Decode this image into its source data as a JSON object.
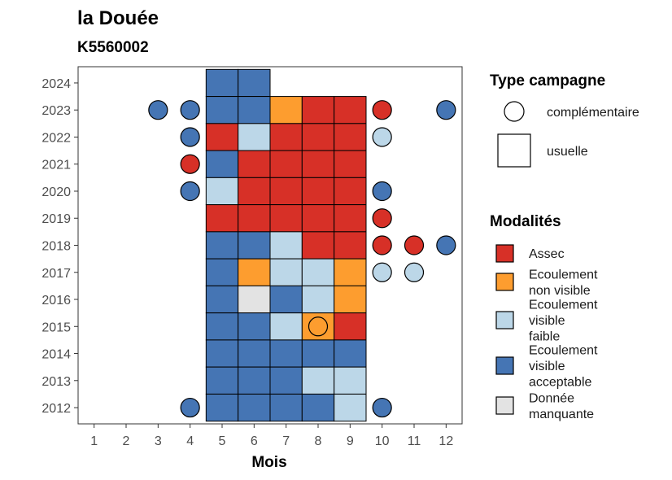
{
  "chart_data": {
    "type": "heatmap",
    "title": "la Douée",
    "subtitle": "K5560002",
    "xlabel": "Mois",
    "ylabel": "",
    "x_ticks": [
      1,
      2,
      3,
      4,
      5,
      6,
      7,
      8,
      9,
      10,
      11,
      12
    ],
    "y_ticks": [
      2012,
      2013,
      2014,
      2015,
      2016,
      2017,
      2018,
      2019,
      2020,
      2021,
      2022,
      2023,
      2024
    ],
    "xlim": [
      0.5,
      12.5
    ],
    "ylim": [
      2011.4,
      2024.6
    ],
    "colors": {
      "Assec": "#d73027",
      "Ecoulement non visible": "#fd9d2f",
      "Ecoulement visible faible": "#bcd7e8",
      "Ecoulement visible acceptable": "#4575b4",
      "Donnée manquante": "#e3e3e3"
    },
    "legend_shape": {
      "title": "Type campagne",
      "items": [
        {
          "label": "complémentaire",
          "shape": "circle"
        },
        {
          "label": "usuelle",
          "shape": "square"
        }
      ]
    },
    "legend_modalites": {
      "title": "Modalités",
      "items": [
        {
          "key": "Assec",
          "lines": [
            "Assec"
          ]
        },
        {
          "key": "Ecoulement non visible",
          "lines": [
            "Ecoulement",
            "non visible"
          ]
        },
        {
          "key": "Ecoulement visible faible",
          "lines": [
            "Ecoulement",
            "visible",
            "faible"
          ]
        },
        {
          "key": "Ecoulement visible acceptable",
          "lines": [
            "Ecoulement",
            "visible",
            "acceptable"
          ]
        },
        {
          "key": "Donnée manquante",
          "lines": [
            "Donnée",
            "manquante"
          ]
        }
      ]
    },
    "usuelle": [
      {
        "year": 2024,
        "months": [
          [
            "Ecoulement visible acceptable",
            "Ecoulement visible acceptable"
          ]
        ],
        "start": 5
      },
      {
        "year": 2023,
        "start": 5,
        "values": [
          "Ecoulement visible acceptable",
          "Ecoulement visible acceptable",
          "Ecoulement non visible",
          "Assec",
          "Assec"
        ]
      },
      {
        "year": 2022,
        "start": 5,
        "values": [
          "Assec",
          "Ecoulement visible faible",
          "Assec",
          "Assec",
          "Assec"
        ]
      },
      {
        "year": 2021,
        "start": 5,
        "values": [
          "Ecoulement visible acceptable",
          "Assec",
          "Assec",
          "Assec",
          "Assec"
        ]
      },
      {
        "year": 2020,
        "start": 5,
        "values": [
          "Ecoulement visible faible",
          "Assec",
          "Assec",
          "Assec",
          "Assec"
        ]
      },
      {
        "year": 2019,
        "start": 5,
        "values": [
          "Assec",
          "Assec",
          "Assec",
          "Assec",
          "Assec"
        ]
      },
      {
        "year": 2018,
        "start": 5,
        "values": [
          "Ecoulement visible acceptable",
          "Ecoulement visible acceptable",
          "Ecoulement visible faible",
          "Assec",
          "Assec"
        ]
      },
      {
        "year": 2017,
        "start": 5,
        "values": [
          "Ecoulement visible acceptable",
          "Ecoulement non visible",
          "Ecoulement visible faible",
          "Ecoulement visible faible",
          "Ecoulement non visible"
        ]
      },
      {
        "year": 2016,
        "start": 5,
        "values": [
          "Ecoulement visible acceptable",
          "Donnée manquante",
          "Ecoulement visible acceptable",
          "Ecoulement visible faible",
          "Ecoulement non visible"
        ]
      },
      {
        "year": 2015,
        "start": 5,
        "values": [
          "Ecoulement visible acceptable",
          "Ecoulement visible acceptable",
          "Ecoulement visible faible",
          "Ecoulement non visible",
          "Assec"
        ]
      },
      {
        "year": 2014,
        "start": 5,
        "values": [
          "Ecoulement visible acceptable",
          "Ecoulement visible acceptable",
          "Ecoulement visible acceptable",
          "Ecoulement visible acceptable",
          "Ecoulement visible acceptable"
        ]
      },
      {
        "year": 2013,
        "start": 5,
        "values": [
          "Ecoulement visible acceptable",
          "Ecoulement visible acceptable",
          "Ecoulement visible acceptable",
          "Ecoulement visible faible",
          "Ecoulement visible faible"
        ]
      },
      {
        "year": 2012,
        "start": 5,
        "values": [
          "Ecoulement visible acceptable",
          "Ecoulement visible acceptable",
          "Ecoulement visible acceptable",
          "Ecoulement visible acceptable",
          "Ecoulement visible faible"
        ]
      }
    ],
    "complementaire": [
      {
        "year": 2023,
        "month": 3,
        "value": "Ecoulement visible acceptable"
      },
      {
        "year": 2023,
        "month": 4,
        "value": "Ecoulement visible acceptable"
      },
      {
        "year": 2023,
        "month": 10,
        "value": "Assec"
      },
      {
        "year": 2023,
        "month": 12,
        "value": "Ecoulement visible acceptable"
      },
      {
        "year": 2022,
        "month": 4,
        "value": "Ecoulement visible acceptable"
      },
      {
        "year": 2022,
        "month": 10,
        "value": "Ecoulement visible faible"
      },
      {
        "year": 2021,
        "month": 4,
        "value": "Assec"
      },
      {
        "year": 2020,
        "month": 4,
        "value": "Ecoulement visible acceptable"
      },
      {
        "year": 2020,
        "month": 10,
        "value": "Ecoulement visible acceptable"
      },
      {
        "year": 2019,
        "month": 10,
        "value": "Assec"
      },
      {
        "year": 2018,
        "month": 10,
        "value": "Assec"
      },
      {
        "year": 2018,
        "month": 11,
        "value": "Assec"
      },
      {
        "year": 2018,
        "month": 12,
        "value": "Ecoulement visible acceptable"
      },
      {
        "year": 2017,
        "month": 10,
        "value": "Ecoulement visible faible"
      },
      {
        "year": 2017,
        "month": 11,
        "value": "Ecoulement visible faible"
      },
      {
        "year": 2015,
        "month": 8,
        "value": "Ecoulement non visible"
      },
      {
        "year": 2012,
        "month": 4,
        "value": "Ecoulement visible acceptable"
      },
      {
        "year": 2012,
        "month": 10,
        "value": "Ecoulement visible acceptable"
      }
    ]
  }
}
